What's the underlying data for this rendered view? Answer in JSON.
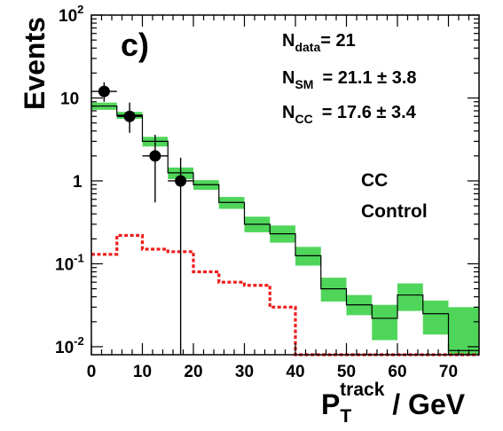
{
  "chart_data": {
    "type": "histogram",
    "panel_label": "c)",
    "xlabel": {
      "main": "P",
      "sub": "T",
      "sup": "track",
      "unit": " / GeV"
    },
    "ylabel": "Events",
    "xlim": [
      0,
      76
    ],
    "ylim": [
      0.008,
      100
    ],
    "yscale": "log",
    "x_ticks": [
      "0",
      "10",
      "20",
      "30",
      "40",
      "50",
      "60",
      "70"
    ],
    "y_ticks": [
      {
        "base": "10",
        "exp": "-2",
        "value": 0.01
      },
      {
        "base": "10",
        "exp": "-1",
        "value": 0.1
      },
      {
        "base": "1",
        "exp": "",
        "value": 1
      },
      {
        "base": "10",
        "exp": "",
        "value": 10
      },
      {
        "base": "10",
        "exp": "2",
        "value": 100
      }
    ],
    "bin_edges": [
      0,
      5,
      10,
      15,
      20,
      25,
      30,
      35,
      40,
      45,
      50,
      55,
      60,
      65,
      70,
      76
    ],
    "sm_prediction": {
      "values": [
        8.0,
        6.2,
        3.0,
        1.25,
        0.9,
        0.55,
        0.3,
        0.23,
        0.125,
        0.05,
        0.032,
        0.022,
        0.042,
        0.025,
        0.009
      ],
      "band_low": [
        7.2,
        5.6,
        2.6,
        1.05,
        0.78,
        0.46,
        0.24,
        0.18,
        0.095,
        0.035,
        0.024,
        0.012,
        0.027,
        0.014,
        0.005
      ],
      "band_high": [
        8.8,
        6.8,
        3.4,
        1.45,
        1.02,
        0.64,
        0.37,
        0.29,
        0.16,
        0.068,
        0.042,
        0.032,
        0.058,
        0.036,
        0.03
      ],
      "line_color": "#000000",
      "band_color": "#4fd65a"
    },
    "cc_background": {
      "values": [
        0.13,
        0.22,
        0.15,
        0.14,
        0.08,
        0.06,
        0.055,
        0.03,
        0.008,
        0.008,
        0.008,
        0.008,
        0.008,
        0.008,
        0.008
      ],
      "color": "#ee1c1c"
    },
    "data_points": [
      {
        "x": 2.5,
        "y": 12,
        "ylow": 9.0,
        "yhigh": 15.5,
        "xlow": 0,
        "xhigh": 5
      },
      {
        "x": 7.5,
        "y": 6,
        "ylow": 3.8,
        "yhigh": 8.8,
        "xlow": 5,
        "xhigh": 10
      },
      {
        "x": 12.5,
        "y": 2,
        "ylow": 0.55,
        "yhigh": 3.6,
        "xlow": 10,
        "xhigh": 15
      },
      {
        "x": 17.5,
        "y": 1,
        "ylow": 0.008,
        "yhigh": 1.9,
        "xlow": 15,
        "xhigh": 20
      }
    ],
    "annotations": {
      "n_data": {
        "main": "N",
        "sub": "data",
        "rest": "= 21"
      },
      "n_sm": {
        "main": "N",
        "sub": "SM",
        "rest": "= 21.1 ± 3.8"
      },
      "n_cc": {
        "main": "N",
        "sub": "CC",
        "rest": "= 17.6 ± 3.4"
      },
      "region_line1": "CC",
      "region_line2": "Control"
    }
  }
}
